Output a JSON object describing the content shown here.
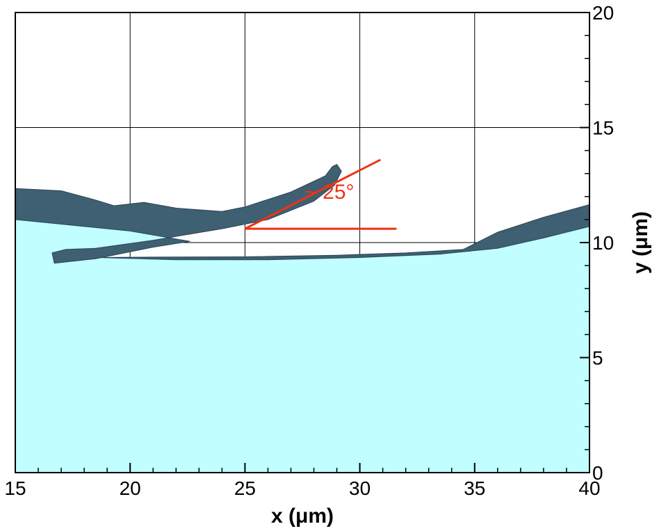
{
  "chart_data": {
    "type": "area",
    "xlabel": "x (μm)",
    "ylabel": "y (μm)",
    "xlim": [
      15,
      40
    ],
    "ylim": [
      0,
      20
    ],
    "xticks": [
      "15",
      "20",
      "25",
      "30",
      "35",
      "40"
    ],
    "yticks": [
      "0",
      "5",
      "10",
      "15",
      "20"
    ],
    "grid": true,
    "liquid_color": "#c0feff",
    "film_color": "#3f5f73",
    "annotation_color": "#ee3311",
    "annotation": {
      "text": "~ 25°",
      "vertex": [
        25.0,
        10.6
      ],
      "horizontal_end": [
        31.6,
        10.6
      ],
      "inclined_end": [
        30.9,
        13.6
      ]
    },
    "liquid_surface": [
      [
        15.0,
        11.1
      ],
      [
        17.0,
        11.2
      ],
      [
        19.0,
        11.1
      ],
      [
        21.0,
        11.0
      ],
      [
        23.0,
        11.1
      ],
      [
        24.8,
        11.55
      ],
      [
        25.0,
        11.0
      ],
      [
        23.5,
        10.6
      ],
      [
        21.0,
        10.1
      ],
      [
        19.0,
        9.75
      ],
      [
        18.6,
        9.35
      ],
      [
        20.0,
        9.35
      ],
      [
        23.0,
        9.3
      ],
      [
        26.0,
        9.35
      ],
      [
        29.0,
        9.45
      ],
      [
        32.0,
        9.55
      ],
      [
        34.5,
        9.7
      ],
      [
        37.0,
        10.15
      ],
      [
        40.0,
        10.7
      ]
    ],
    "upper_film": [
      [
        15.0,
        12.35
      ],
      [
        17.0,
        12.25
      ],
      [
        18.5,
        11.85
      ],
      [
        19.3,
        11.6
      ],
      [
        20.6,
        11.75
      ],
      [
        22.0,
        11.5
      ],
      [
        24.0,
        11.35
      ],
      [
        25.0,
        11.55
      ],
      [
        27.0,
        12.2
      ],
      [
        28.5,
        12.9
      ],
      [
        28.8,
        13.3
      ],
      [
        29.0,
        13.4
      ],
      [
        29.2,
        13.1
      ],
      [
        28.9,
        12.5
      ],
      [
        28.0,
        11.8
      ],
      [
        26.0,
        11.0
      ],
      [
        24.0,
        10.6
      ],
      [
        21.0,
        10.1
      ],
      [
        18.5,
        9.75
      ],
      [
        17.2,
        9.7
      ],
      [
        16.6,
        9.55
      ],
      [
        16.7,
        9.1
      ],
      [
        18.5,
        9.3
      ],
      [
        21.0,
        9.8
      ],
      [
        22.6,
        10.05
      ],
      [
        20.0,
        10.5
      ],
      [
        17.0,
        10.8
      ],
      [
        15.0,
        11.0
      ]
    ],
    "right_film": [
      [
        18.6,
        9.35
      ],
      [
        22.0,
        9.25
      ],
      [
        26.0,
        9.25
      ],
      [
        30.0,
        9.35
      ],
      [
        33.5,
        9.5
      ],
      [
        36.0,
        9.75
      ],
      [
        38.0,
        10.2
      ],
      [
        40.0,
        10.7
      ],
      [
        40.0,
        11.65
      ],
      [
        38.0,
        11.1
      ],
      [
        36.0,
        10.45
      ],
      [
        34.5,
        9.7
      ],
      [
        32.0,
        9.55
      ],
      [
        29.0,
        9.45
      ],
      [
        25.0,
        9.38
      ],
      [
        21.0,
        9.37
      ]
    ]
  }
}
